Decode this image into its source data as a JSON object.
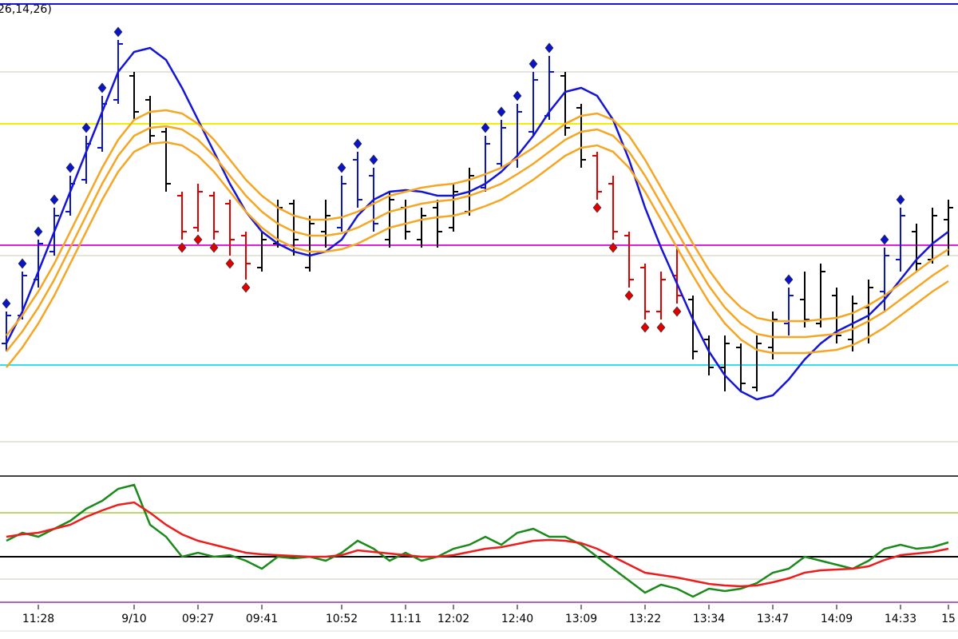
{
  "chart_data": [
    {
      "type": "ohlc",
      "title": "26,14,26)",
      "ylim": [
        0,
        590
      ],
      "open": [
        160,
        195,
        240,
        275,
        325,
        365,
        405,
        465,
        495,
        465,
        425,
        345,
        305,
        345,
        335,
        295,
        255,
        285,
        335,
        255,
        300,
        305,
        390,
        370,
        290,
        330,
        290,
        330,
        305,
        325,
        355,
        385,
        390,
        425,
        445,
        495,
        455,
        395,
        360,
        295,
        255,
        200,
        245,
        215,
        165,
        130,
        155,
        105,
        155,
        185,
        215,
        185,
        220,
        165,
        205,
        225,
        265,
        300,
        265,
        315
      ],
      "high": [
        200,
        250,
        290,
        330,
        370,
        420,
        470,
        540,
        500,
        470,
        430,
        350,
        360,
        350,
        340,
        300,
        300,
        340,
        340,
        320,
        340,
        370,
        400,
        380,
        350,
        340,
        330,
        340,
        360,
        380,
        420,
        440,
        460,
        500,
        520,
        500,
        460,
        400,
        370,
        300,
        260,
        250,
        280,
        220,
        170,
        170,
        160,
        170,
        200,
        230,
        250,
        260,
        230,
        220,
        240,
        280,
        330,
        310,
        330,
        340
      ],
      "low": [
        150,
        190,
        230,
        270,
        320,
        360,
        400,
        460,
        440,
        410,
        350,
        290,
        300,
        290,
        270,
        240,
        250,
        280,
        270,
        250,
        280,
        300,
        330,
        300,
        280,
        290,
        280,
        280,
        300,
        320,
        350,
        380,
        380,
        420,
        440,
        420,
        380,
        340,
        290,
        230,
        190,
        190,
        210,
        140,
        120,
        100,
        100,
        100,
        140,
        170,
        180,
        180,
        160,
        150,
        160,
        200,
        250,
        250,
        260,
        270
      ],
      "close": [
        195,
        245,
        285,
        320,
        360,
        410,
        460,
        535,
        450,
        420,
        360,
        300,
        350,
        300,
        290,
        260,
        290,
        330,
        290,
        310,
        320,
        360,
        340,
        310,
        340,
        300,
        320,
        300,
        350,
        370,
        410,
        430,
        450,
        490,
        500,
        430,
        390,
        350,
        300,
        240,
        200,
        240,
        220,
        150,
        130,
        160,
        110,
        160,
        190,
        220,
        190,
        250,
        170,
        210,
        230,
        270,
        320,
        260,
        320,
        330
      ],
      "bar_color": "#000000",
      "lines": [
        {
          "color": "#1515d8",
          "values": [
            160,
            200,
            250,
            300,
            350,
            400,
            450,
            500,
            525,
            530,
            515,
            480,
            440,
            400,
            360,
            325,
            300,
            285,
            275,
            270,
            275,
            290,
            320,
            340,
            350,
            352,
            350,
            345,
            345,
            350,
            360,
            375,
            395,
            420,
            450,
            475,
            480,
            470,
            440,
            390,
            330,
            280,
            235,
            190,
            150,
            120,
            100,
            90,
            95,
            115,
            140,
            160,
            175,
            185,
            195,
            215,
            240,
            265,
            285,
            300
          ]
        },
        {
          "color": "#f5a623",
          "values": [
            170,
            195,
            225,
            260,
            300,
            340,
            380,
            415,
            440,
            450,
            452,
            448,
            435,
            415,
            390,
            365,
            345,
            330,
            320,
            315,
            315,
            318,
            325,
            335,
            345,
            350,
            355,
            358,
            360,
            365,
            372,
            380,
            392,
            405,
            420,
            435,
            445,
            448,
            440,
            420,
            390,
            355,
            320,
            285,
            252,
            225,
            205,
            192,
            188,
            188,
            188,
            190,
            192,
            198,
            208,
            220,
            235,
            250,
            265,
            278
          ]
        },
        {
          "color": "#f5a623",
          "values": [
            150,
            175,
            205,
            240,
            280,
            320,
            360,
            395,
            420,
            430,
            432,
            428,
            415,
            395,
            370,
            345,
            325,
            310,
            300,
            295,
            295,
            298,
            305,
            315,
            325,
            330,
            335,
            338,
            340,
            345,
            352,
            360,
            372,
            385,
            400,
            415,
            425,
            428,
            420,
            400,
            370,
            335,
            300,
            265,
            232,
            205,
            185,
            172,
            168,
            168,
            168,
            170,
            172,
            178,
            188,
            200,
            215,
            230,
            245,
            258
          ]
        },
        {
          "color": "#f5a623",
          "values": [
            130,
            155,
            185,
            220,
            260,
            300,
            340,
            375,
            400,
            410,
            412,
            408,
            395,
            375,
            350,
            325,
            305,
            290,
            280,
            275,
            275,
            278,
            285,
            295,
            305,
            310,
            315,
            318,
            320,
            325,
            332,
            340,
            352,
            365,
            380,
            395,
            405,
            408,
            400,
            380,
            350,
            315,
            280,
            245,
            212,
            185,
            165,
            152,
            148,
            148,
            148,
            150,
            152,
            158,
            168,
            180,
            195,
            210,
            225,
            238
          ]
        }
      ],
      "signals": [
        {
          "color": "#0a14c8",
          "values": [
            210,
            260,
            300,
            340,
            380,
            430,
            480,
            550,
            null,
            null,
            null,
            null,
            null,
            null,
            null,
            null,
            null,
            null,
            null,
            null,
            null,
            380,
            410,
            390,
            null,
            null,
            null,
            null,
            null,
            null,
            430,
            450,
            470,
            510,
            530,
            null,
            null,
            null,
            null,
            null,
            null,
            null,
            null,
            null,
            null,
            null,
            null,
            null,
            null,
            240,
            null,
            null,
            null,
            null,
            null,
            290,
            340,
            null,
            null,
            null
          ]
        },
        {
          "color": "#e00000",
          "values": [
            null,
            null,
            null,
            null,
            null,
            null,
            null,
            null,
            null,
            null,
            null,
            280,
            290,
            280,
            260,
            230,
            null,
            null,
            null,
            null,
            null,
            null,
            null,
            null,
            null,
            null,
            null,
            null,
            null,
            null,
            null,
            null,
            null,
            null,
            null,
            null,
            null,
            330,
            280,
            220,
            180,
            180,
            200,
            null,
            null,
            null,
            null,
            null,
            null,
            null,
            null,
            null,
            null,
            null,
            null,
            null,
            null,
            null,
            null,
            null
          ]
        }
      ],
      "levels": [
        {
          "value": 585,
          "color": "#1515d8"
        },
        {
          "value": 500,
          "color": "#e4e4da"
        },
        {
          "value": 435,
          "color": "#f0f000"
        },
        {
          "value": 283,
          "color": "#e020e0"
        },
        {
          "value": 270,
          "color": "#e4e4da"
        },
        {
          "value": 133,
          "color": "#30e0f0"
        },
        {
          "value": 37,
          "color": "#e4e4da"
        }
      ]
    },
    {
      "type": "line",
      "ylim": [
        40,
        200
      ],
      "categories": [
        null,
        null,
        "11:28",
        null,
        null,
        null,
        null,
        null,
        "9/10",
        null,
        null,
        null,
        "09:27",
        null,
        null,
        null,
        "09:41",
        null,
        null,
        null,
        null,
        "10:52",
        null,
        null,
        null,
        "11:11",
        null,
        null,
        "12:02",
        null,
        null,
        null,
        "12:40",
        null,
        null,
        null,
        "13:09",
        null,
        null,
        null,
        "13:22",
        null,
        null,
        null,
        "13:34",
        null,
        null,
        null,
        "13:47",
        null,
        null,
        null,
        "14:09",
        null,
        null,
        null,
        "14:33",
        null,
        null,
        "15"
      ],
      "series": [
        {
          "color": "#1a8a1a",
          "values": [
            120,
            130,
            125,
            135,
            145,
            160,
            170,
            185,
            190,
            140,
            125,
            100,
            105,
            100,
            102,
            95,
            85,
            100,
            98,
            100,
            95,
            105,
            120,
            110,
            95,
            105,
            95,
            100,
            110,
            115,
            125,
            115,
            130,
            135,
            125,
            125,
            115,
            100,
            85,
            70,
            55,
            65,
            60,
            50,
            60,
            57,
            60,
            67,
            80,
            85,
            100,
            95,
            90,
            85,
            95,
            110,
            115,
            110,
            112,
            118
          ]
        },
        {
          "color": "#ee1c1c",
          "values": [
            125,
            128,
            130,
            135,
            140,
            150,
            158,
            165,
            168,
            155,
            140,
            128,
            120,
            115,
            110,
            105,
            103,
            102,
            101,
            100,
            100,
            102,
            108,
            106,
            104,
            102,
            100,
            100,
            102,
            106,
            110,
            112,
            116,
            120,
            121,
            120,
            117,
            110,
            100,
            90,
            80,
            77,
            74,
            70,
            66,
            64,
            63,
            64,
            68,
            73,
            80,
            83,
            84,
            85,
            88,
            96,
            102,
            104,
            106,
            110
          ]
        }
      ],
      "levels": [
        {
          "value": 155,
          "color": "#b8d870"
        },
        {
          "value": 100,
          "color": "#000000"
        },
        {
          "value": 72,
          "color": "#e4e4da"
        },
        {
          "value": 43,
          "color": "#b060d0"
        }
      ]
    }
  ]
}
